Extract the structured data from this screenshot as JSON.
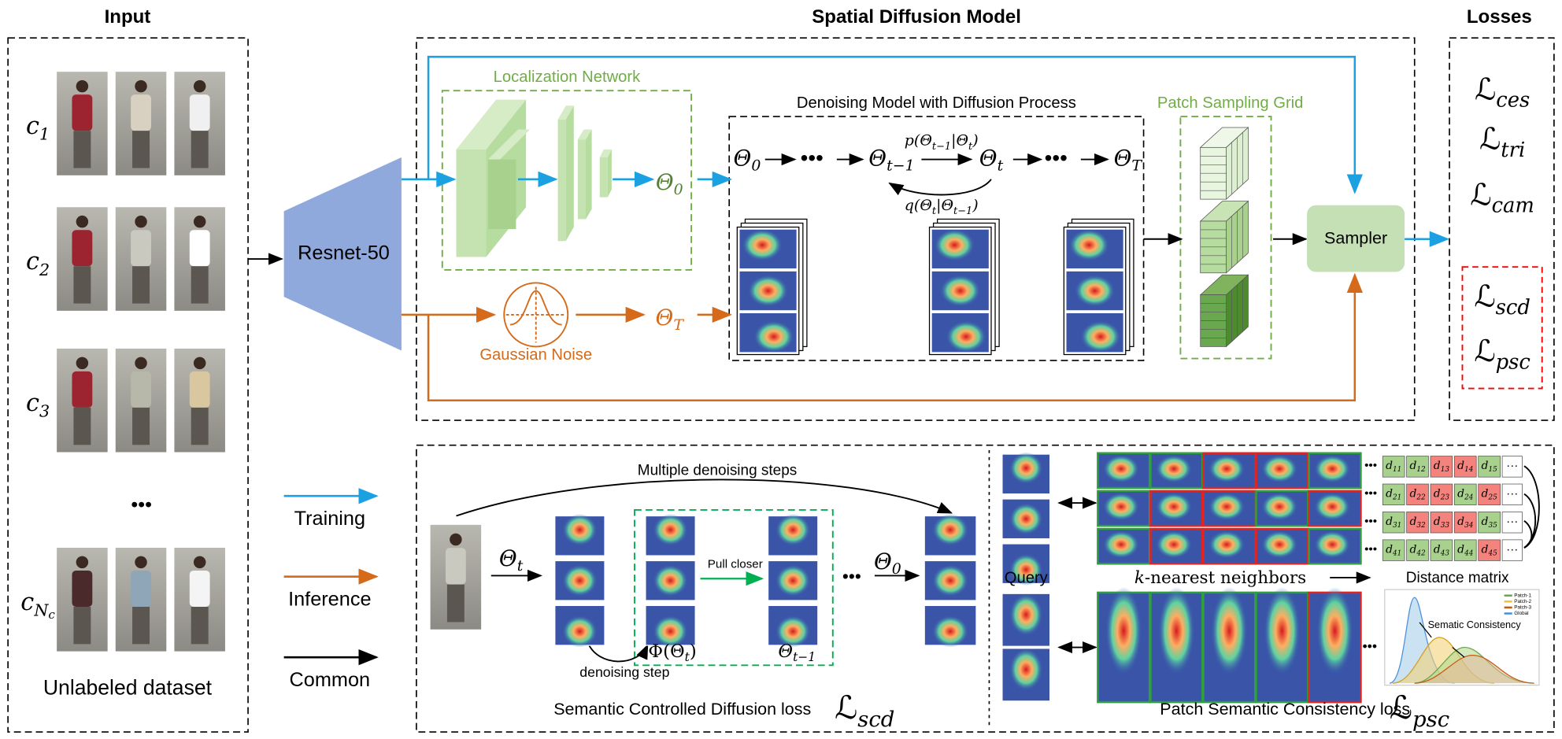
{
  "input": {
    "title": "Input",
    "cameras": [
      [
        {
          "it": "c"
        },
        {
          "sub": "1"
        }
      ],
      [
        {
          "it": "c"
        },
        {
          "sub": "2"
        }
      ],
      [
        {
          "it": "c"
        },
        {
          "sub": "3"
        }
      ],
      [
        {
          "it": "c"
        },
        {
          "sub": "N"
        },
        {
          "sub2": "c"
        }
      ]
    ],
    "ellipsis": "•••",
    "caption": "Unlabeled dataset"
  },
  "legend": [
    {
      "label": "Training",
      "color": "#1ba1e2"
    },
    {
      "label": "Inference",
      "color": "#d46a1a"
    },
    {
      "label": "Common",
      "color": "#000000"
    }
  ],
  "backbone": {
    "label": "Resnet-50"
  },
  "spatial": {
    "title": "Spatial Diffusion Model",
    "localization": {
      "title": "Localization Network",
      "output": [
        {
          "it": "Θ"
        },
        {
          "sub": "0"
        }
      ]
    },
    "noise": {
      "label": "Gaussian Noise",
      "output": [
        {
          "it": "Θ"
        },
        {
          "sub": "T"
        }
      ]
    },
    "denoise": {
      "title": "Denoising Model with Diffusion Process",
      "chain": [
        [
          {
            "it": "Θ"
          },
          {
            "sub": "0"
          }
        ],
        "•••",
        [
          {
            "it": "Θ"
          },
          {
            "sub": "t−1"
          }
        ],
        [
          {
            "it": "Θ"
          },
          {
            "sub": "t"
          }
        ],
        "•••",
        [
          {
            "it": "Θ"
          },
          {
            "sub": "T"
          }
        ]
      ],
      "forward": [
        {
          "it": "p(Θ"
        },
        {
          "sub": "t−1"
        },
        {
          "it": "|Θ"
        },
        {
          "sub": "t"
        },
        {
          "it": ")"
        }
      ],
      "reverse": [
        {
          "it": "q(Θ"
        },
        {
          "sub": "t"
        },
        {
          "it": "|Θ"
        },
        {
          "sub": "t−1"
        },
        {
          "it": ")"
        }
      ]
    },
    "grid": {
      "title": "Patch Sampling Grid"
    },
    "sampler": "Sampler"
  },
  "losses": {
    "title": "Losses",
    "items": [
      [
        {
          "t": "ℒ"
        },
        {
          "sub": "ces"
        }
      ],
      [
        {
          "t": "ℒ"
        },
        {
          "sub": "tri"
        }
      ],
      [
        {
          "t": "ℒ"
        },
        {
          "sub": "cam"
        }
      ],
      [
        {
          "t": "ℒ"
        },
        {
          "sub": "scd"
        }
      ],
      [
        {
          "t": "ℒ"
        },
        {
          "sub": "psc"
        }
      ]
    ]
  },
  "scd": {
    "steps_label": "Multiple denoising steps",
    "input": [
      {
        "it": "Θ"
      },
      {
        "sub": "t"
      }
    ],
    "pull": "Pull closer",
    "phi": [
      {
        "t": "Φ(Θ"
      },
      {
        "sub": "t"
      },
      {
        "t": ")"
      }
    ],
    "prev": [
      {
        "it": "Θ"
      },
      {
        "sub": "t−1"
      }
    ],
    "step": "denoising step",
    "ellipsis": "•••",
    "output": [
      {
        "it": "Θ"
      },
      {
        "sub": "0"
      }
    ],
    "caption": "Semantic Controlled Diffusion loss",
    "loss": [
      {
        "t": "ℒ"
      },
      {
        "sub": "scd"
      }
    ]
  },
  "psc": {
    "query": "Query",
    "knn": [
      {
        "it": "k"
      },
      {
        "t": "-nearest neighbors"
      }
    ],
    "matrix_title": "Distance matrix",
    "row_ellipsis": "•••",
    "cell_ellipsis": "···",
    "matrix": [
      [
        {
          "t": "d",
          "sub": "11",
          "color": "#a9d18e"
        },
        {
          "t": "d",
          "sub": "12",
          "color": "#a9d18e"
        },
        {
          "t": "d",
          "sub": "13",
          "color": "#f4837d"
        },
        {
          "t": "d",
          "sub": "14",
          "color": "#f4837d"
        },
        {
          "t": "d",
          "sub": "15",
          "color": "#a9d18e"
        }
      ],
      [
        {
          "t": "d",
          "sub": "21",
          "color": "#a9d18e"
        },
        {
          "t": "d",
          "sub": "22",
          "color": "#f4837d"
        },
        {
          "t": "d",
          "sub": "23",
          "color": "#f4837d"
        },
        {
          "t": "d",
          "sub": "24",
          "color": "#a9d18e"
        },
        {
          "t": "d",
          "sub": "25",
          "color": "#f4837d"
        }
      ],
      [
        {
          "t": "d",
          "sub": "31",
          "color": "#a9d18e"
        },
        {
          "t": "d",
          "sub": "32",
          "color": "#f4837d"
        },
        {
          "t": "d",
          "sub": "33",
          "color": "#f4837d"
        },
        {
          "t": "d",
          "sub": "34",
          "color": "#f4837d"
        },
        {
          "t": "d",
          "sub": "35",
          "color": "#a9d18e"
        }
      ],
      [
        {
          "t": "d",
          "sub": "41",
          "color": "#a9d18e"
        },
        {
          "t": "d",
          "sub": "42",
          "color": "#a9d18e"
        },
        {
          "t": "d",
          "sub": "43",
          "color": "#a9d18e"
        },
        {
          "t": "d",
          "sub": "44",
          "color": "#a9d18e"
        },
        {
          "t": "d",
          "sub": "45",
          "color": "#f4837d"
        }
      ]
    ],
    "plot": {
      "legend": [
        "Patch-1",
        "Patch-2",
        "Patch-3",
        "Global"
      ],
      "annotation": "Sematic Consistency"
    },
    "caption": "Patch Semantic Consistency loss",
    "loss": [
      {
        "t": "ℒ"
      },
      {
        "sub": "psc"
      }
    ]
  }
}
